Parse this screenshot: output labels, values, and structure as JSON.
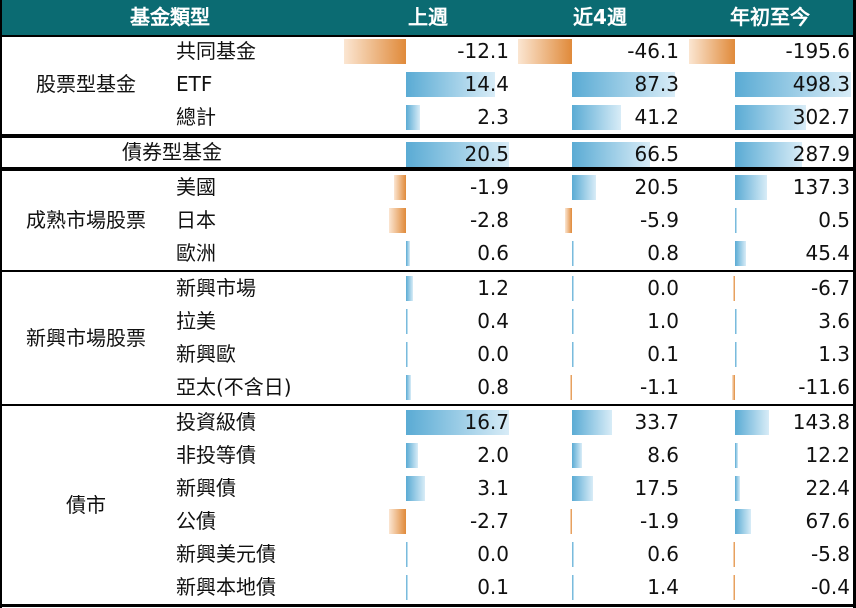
{
  "header": {
    "category": "基金類型",
    "week": "上週",
    "four_weeks": "近4週",
    "ytd": "年初至今"
  },
  "colors": {
    "header_bg": "#0b6b72",
    "positive_bar": "#5aabd4",
    "negative_bar": "#e08a3a"
  },
  "groups": [
    {
      "label": "股票型基金",
      "rows": [
        {
          "label": "共同基金",
          "week": "-12.1",
          "four_weeks": "-46.1",
          "ytd": "-195.6"
        },
        {
          "label": "ETF",
          "week": "14.4",
          "four_weeks": "87.3",
          "ytd": "498.3"
        },
        {
          "label": "總計",
          "week": "2.3",
          "four_weeks": "41.2",
          "ytd": "302.7"
        }
      ]
    },
    {
      "label": "債券型基金",
      "rows": [
        {
          "label": "",
          "week": "20.5",
          "four_weeks": "66.5",
          "ytd": "287.9"
        }
      ]
    },
    {
      "label": "成熟市場股票",
      "rows": [
        {
          "label": "美國",
          "week": "-1.9",
          "four_weeks": "20.5",
          "ytd": "137.3"
        },
        {
          "label": "日本",
          "week": "-2.8",
          "four_weeks": "-5.9",
          "ytd": "0.5"
        },
        {
          "label": "歐洲",
          "week": "0.6",
          "four_weeks": "0.8",
          "ytd": "45.4"
        }
      ]
    },
    {
      "label": "新興市場股票",
      "rows": [
        {
          "label": "新興市場",
          "week": "1.2",
          "four_weeks": "0.0",
          "ytd": "-6.7"
        },
        {
          "label": "拉美",
          "week": "0.4",
          "four_weeks": "1.0",
          "ytd": "3.6"
        },
        {
          "label": "新興歐",
          "week": "0.0",
          "four_weeks": "0.1",
          "ytd": "1.3"
        },
        {
          "label": "亞太(不含日)",
          "week": "0.8",
          "four_weeks": "-1.1",
          "ytd": "-11.6"
        }
      ]
    },
    {
      "label": "債市",
      "rows": [
        {
          "label": "投資級債",
          "week": "16.7",
          "four_weeks": "33.7",
          "ytd": "143.8"
        },
        {
          "label": "非投等債",
          "week": "2.0",
          "four_weeks": "8.6",
          "ytd": "12.2"
        },
        {
          "label": "新興債",
          "week": "3.1",
          "four_weeks": "17.5",
          "ytd": "22.4"
        },
        {
          "label": "公債",
          "week": "-2.7",
          "four_weeks": "-1.9",
          "ytd": "67.6"
        },
        {
          "label": "新興美元債",
          "week": "0.0",
          "four_weeks": "0.6",
          "ytd": "-5.8"
        },
        {
          "label": "新興本地債",
          "week": "0.1",
          "four_weeks": "1.4",
          "ytd": "-0.4"
        }
      ]
    }
  ]
}
